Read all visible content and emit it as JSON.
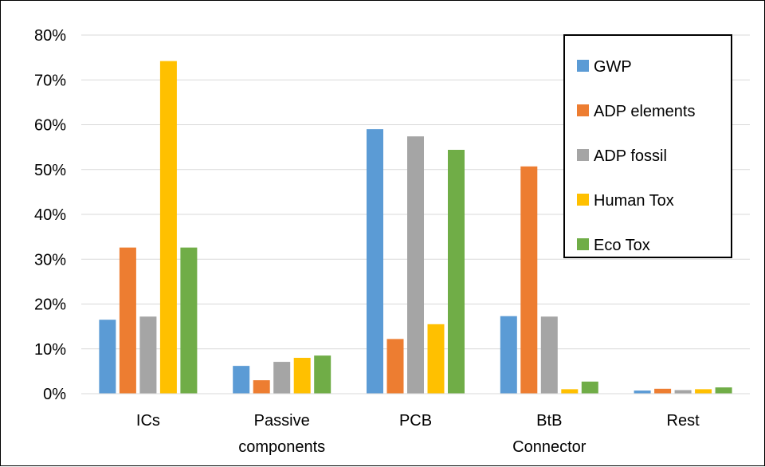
{
  "chart_data": {
    "type": "bar",
    "categories": [
      [
        "ICs"
      ],
      [
        "Passive",
        "components"
      ],
      [
        "PCB"
      ],
      [
        "BtB",
        "Connector"
      ],
      [
        "Rest"
      ]
    ],
    "series": [
      {
        "name": "GWP",
        "color": "#5b9bd5",
        "values": [
          16.5,
          6.2,
          59.0,
          17.3,
          0.7
        ]
      },
      {
        "name": "ADP elements",
        "color": "#ed7d31",
        "values": [
          32.6,
          3.0,
          12.2,
          50.7,
          1.1
        ]
      },
      {
        "name": "ADP fossil",
        "color": "#a5a5a5",
        "values": [
          17.2,
          7.1,
          57.4,
          17.2,
          0.8
        ]
      },
      {
        "name": "Human Tox",
        "color": "#ffc000",
        "values": [
          74.2,
          8.0,
          15.5,
          1.0,
          1.0
        ]
      },
      {
        "name": "Eco Tox",
        "color": "#70ad47",
        "values": [
          32.6,
          8.5,
          54.4,
          2.7,
          1.4
        ]
      }
    ],
    "ylim": [
      0,
      80
    ],
    "yticks": [
      "0%",
      "10%",
      "20%",
      "30%",
      "40%",
      "50%",
      "60%",
      "70%",
      "80%"
    ],
    "ylabel": "",
    "xlabel": "",
    "grid": true,
    "legend": "top-right"
  }
}
